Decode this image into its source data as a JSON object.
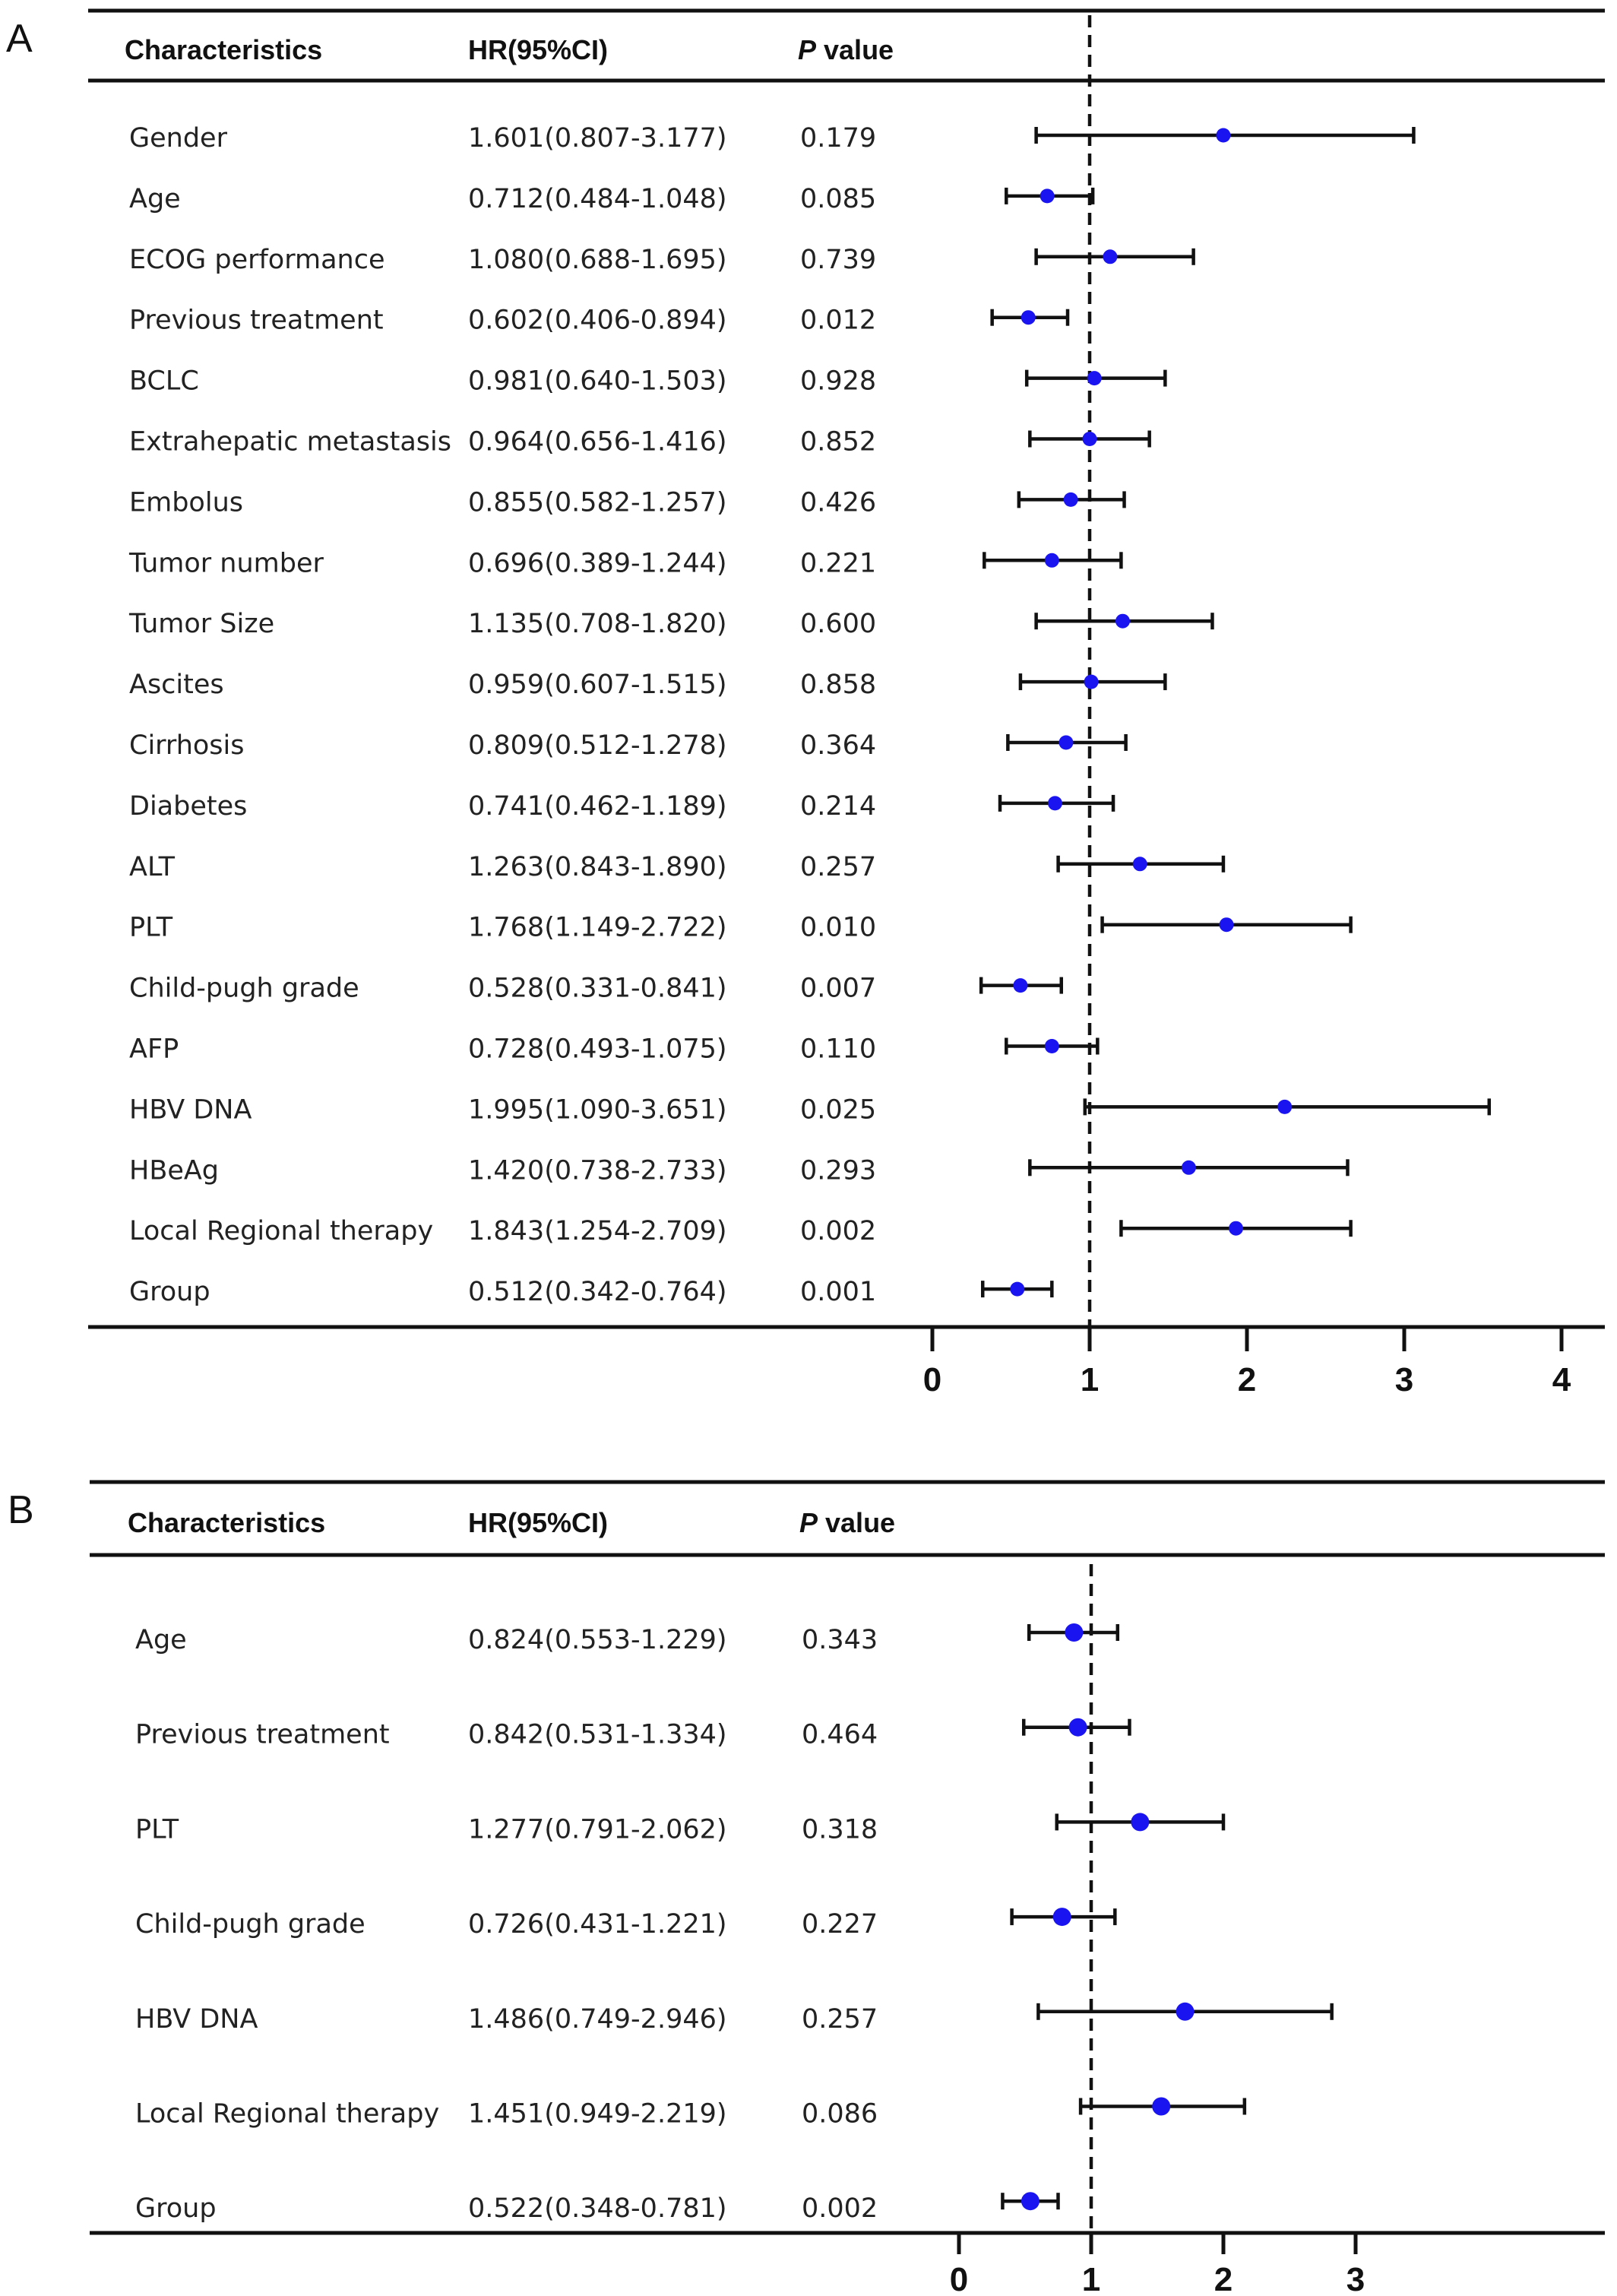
{
  "chart_data": [
    {
      "type": "forest",
      "panel": "A",
      "headers": {
        "characteristics": "Characteristics",
        "hr": "HR(95%CI)",
        "p_italic": "P",
        "p_rest": " value"
      },
      "x_ticks": [
        0,
        1,
        2,
        3,
        4
      ],
      "xlim": [
        0,
        4
      ],
      "reference_line": 1,
      "rows": [
        {
          "label": "Gender",
          "hr_text": "1.601(0.807-3.177)",
          "p": "0.179",
          "est": 1.85,
          "lo": 0.66,
          "hi": 3.06
        },
        {
          "label": "Age",
          "hr_text": "0.712(0.484-1.048)",
          "p": "0.085",
          "est": 0.73,
          "lo": 0.47,
          "hi": 1.02
        },
        {
          "label": "ECOG performance",
          "hr_text": "1.080(0.688-1.695)",
          "p": "0.739",
          "est": 1.13,
          "lo": 0.66,
          "hi": 1.66
        },
        {
          "label": "Previous treatment",
          "hr_text": "0.602(0.406-0.894)",
          "p": "0.012",
          "est": 0.61,
          "lo": 0.38,
          "hi": 0.86
        },
        {
          "label": "BCLC",
          "hr_text": "0.981(0.640-1.503)",
          "p": "0.928",
          "est": 1.03,
          "lo": 0.6,
          "hi": 1.48
        },
        {
          "label": "Extrahepatic metastasis",
          "hr_text": "0.964(0.656-1.416)",
          "p": "0.852",
          "est": 1.0,
          "lo": 0.62,
          "hi": 1.38
        },
        {
          "label": "Embolus",
          "hr_text": "0.855(0.582-1.257)",
          "p": "0.426",
          "est": 0.88,
          "lo": 0.55,
          "hi": 1.22
        },
        {
          "label": "Tumor number",
          "hr_text": "0.696(0.389-1.244)",
          "p": "0.221",
          "est": 0.76,
          "lo": 0.33,
          "hi": 1.2
        },
        {
          "label": "Tumor Size",
          "hr_text": "1.135(0.708-1.820)",
          "p": "0.600",
          "est": 1.21,
          "lo": 0.66,
          "hi": 1.78
        },
        {
          "label": "Ascites",
          "hr_text": "0.959(0.607-1.515)",
          "p": "0.858",
          "est": 1.01,
          "lo": 0.56,
          "hi": 1.48
        },
        {
          "label": "Cirrhosis",
          "hr_text": "0.809(0.512-1.278)",
          "p": "0.364",
          "est": 0.85,
          "lo": 0.48,
          "hi": 1.23
        },
        {
          "label": "Diabetes",
          "hr_text": "0.741(0.462-1.189)",
          "p": "0.214",
          "est": 0.78,
          "lo": 0.43,
          "hi": 1.15
        },
        {
          "label": "ALT",
          "hr_text": "1.263(0.843-1.890)",
          "p": "0.257",
          "est": 1.32,
          "lo": 0.8,
          "hi": 1.85
        },
        {
          "label": "PLT",
          "hr_text": "1.768(1.149-2.722)",
          "p": "0.010",
          "est": 1.87,
          "lo": 1.08,
          "hi": 2.66
        },
        {
          "label": "Child-pugh grade",
          "hr_text": "0.528(0.331-0.841)",
          "p": "0.007",
          "est": 0.56,
          "lo": 0.31,
          "hi": 0.82
        },
        {
          "label": "AFP",
          "hr_text": "0.728(0.493-1.075)",
          "p": "0.110",
          "est": 0.76,
          "lo": 0.47,
          "hi": 1.05
        },
        {
          "label": "HBV DNA",
          "hr_text": "1.995(1.090-3.651)",
          "p": "0.025",
          "est": 2.24,
          "lo": 0.97,
          "hi": 3.54
        },
        {
          "label": "HBeAg",
          "hr_text": "1.420(0.738-2.733)",
          "p": "0.293",
          "est": 1.63,
          "lo": 0.62,
          "hi": 2.64
        },
        {
          "label": "Local Regional therapy",
          "hr_text": "1.843(1.254-2.709)",
          "p": "0.002",
          "est": 1.93,
          "lo": 1.2,
          "hi": 2.66
        },
        {
          "label": "Group",
          "hr_text": "0.512(0.342-0.764)",
          "p": "0.001",
          "est": 0.54,
          "lo": 0.32,
          "hi": 0.76
        }
      ]
    },
    {
      "type": "forest",
      "panel": "B",
      "headers": {
        "characteristics": "Characteristics",
        "hr": "HR(95%CI)",
        "p_italic": "P",
        "p_rest": " value"
      },
      "x_ticks": [
        0,
        1,
        2,
        3
      ],
      "xlim": [
        0,
        3
      ],
      "reference_line": 1,
      "rows": [
        {
          "label": "Age",
          "hr_text": "0.824(0.553-1.229)",
          "p": "0.343",
          "est": 0.87,
          "lo": 0.53,
          "hi": 1.2
        },
        {
          "label": "Previous treatment",
          "hr_text": "0.842(0.531-1.334)",
          "p": "0.464",
          "est": 0.9,
          "lo": 0.49,
          "hi": 1.29
        },
        {
          "label": "PLT",
          "hr_text": "1.277(0.791-2.062)",
          "p": "0.318",
          "est": 1.37,
          "lo": 0.74,
          "hi": 2.0
        },
        {
          "label": "Child-pugh grade",
          "hr_text": "0.726(0.431-1.221)",
          "p": "0.227",
          "est": 0.78,
          "lo": 0.4,
          "hi": 1.18
        },
        {
          "label": "HBV DNA",
          "hr_text": "1.486(0.749-2.946)",
          "p": "0.257",
          "est": 1.71,
          "lo": 0.6,
          "hi": 2.82
        },
        {
          "label": "Local Regional therapy",
          "hr_text": "1.451(0.949-2.219)",
          "p": "0.086",
          "est": 1.53,
          "lo": 0.92,
          "hi": 2.16
        },
        {
          "label": "Group",
          "hr_text": "0.522(0.348-0.781)",
          "p": "0.002",
          "est": 0.54,
          "lo": 0.33,
          "hi": 0.75,
          "p_color": "#e8201e"
        }
      ]
    }
  ]
}
